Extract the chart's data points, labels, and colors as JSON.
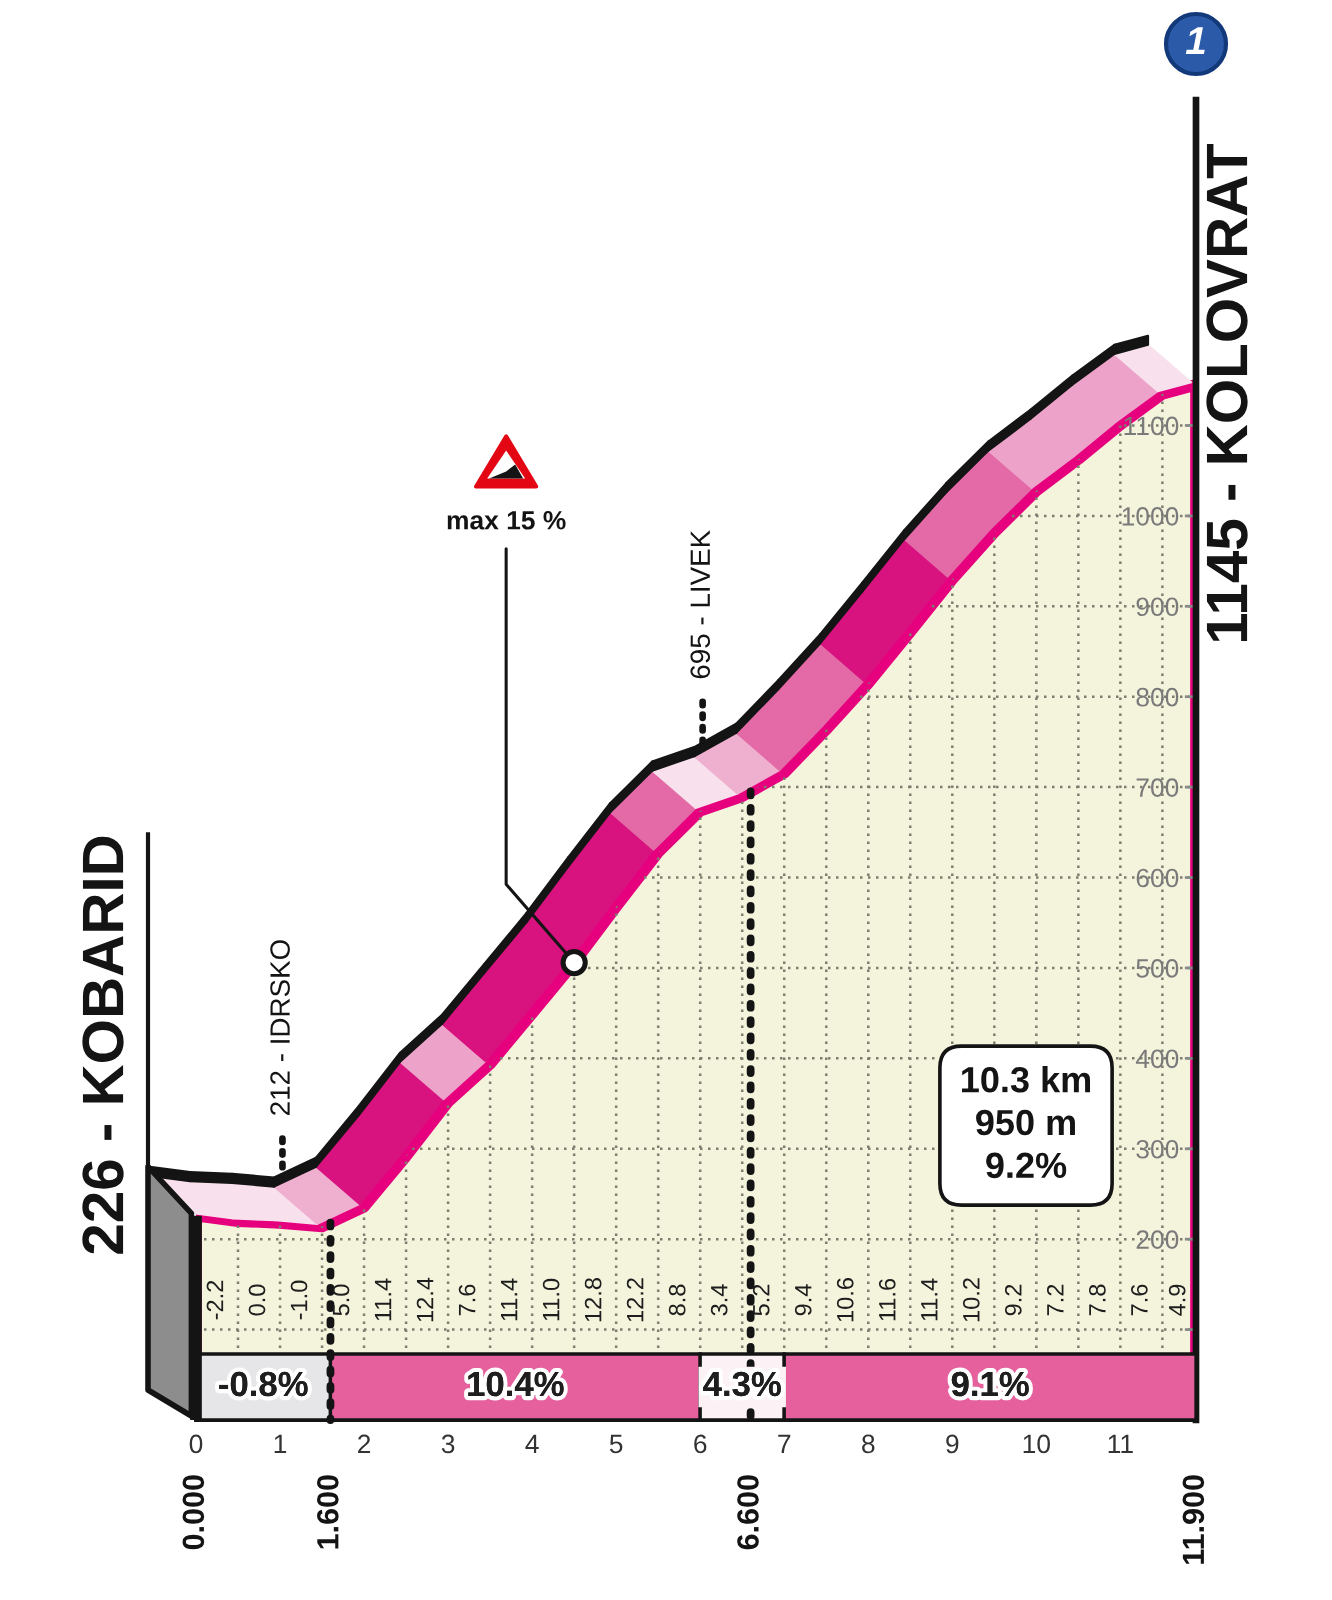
{
  "chart_data": {
    "type": "area",
    "x": [
      0,
      0.5,
      1,
      1.5,
      2,
      2.5,
      3,
      3.5,
      4,
      4.5,
      5,
      5.5,
      6,
      6.5,
      7,
      7.5,
      8,
      8.5,
      9,
      9.5,
      10,
      10.5,
      11,
      11.5,
      11.9
    ],
    "series": [
      {
        "color": "#f4f3dc",
        "values": [
          226,
          220,
          218,
          214,
          236,
          292,
          352,
          394,
          450,
          506,
          568,
          628,
          674,
          690,
          716,
          764,
          815,
          872,
          930,
          982,
          1028,
          1063,
          1101,
          1135,
          1145
        ]
      }
    ],
    "xlim": [
      0,
      11.9
    ],
    "xticks": [
      0,
      {
        "value": 0.5,
        "label": null
      },
      1,
      {
        "value": 1.5,
        "label": null
      },
      2,
      {
        "value": 2.5,
        "label": null
      },
      3,
      {
        "value": 3.5,
        "label": null
      },
      4,
      {
        "value": 4.5,
        "label": null
      },
      5,
      {
        "value": 5.5,
        "label": null
      },
      6,
      {
        "value": 6.5,
        "label": null
      },
      7,
      {
        "value": 7.5,
        "label": null
      },
      8,
      {
        "value": 8.5,
        "label": null
      },
      9,
      {
        "value": 9.5,
        "label": null
      },
      10,
      {
        "value": 10.5,
        "label": null
      },
      11,
      {
        "value": 11.5,
        "label": null
      }
    ],
    "ylim": [
      0,
      1460
    ],
    "yticks": [
      {
        "value": 100,
        "label": null
      },
      200,
      300,
      400,
      500,
      600,
      700,
      800,
      900,
      1000,
      1100
    ],
    "grid": true,
    "ref_lines": [
      {
        "axis": "x",
        "value": 0,
        "label": "0.000",
        "color": "#141414",
        "line_style": "solid"
      },
      {
        "axis": "x",
        "value": 1.6,
        "label": "1.600",
        "color": "#141414",
        "line_style": "dotted"
      },
      {
        "axis": "x",
        "value": 6.6,
        "label": "6.600",
        "color": "#141414",
        "line_style": "dotted"
      }
    ],
    "bands": [
      {
        "axis": "x",
        "from": 0,
        "to": 1.6,
        "label": "-0.8%",
        "color": "#e6e6e8"
      },
      {
        "axis": "x",
        "from": 1.6,
        "to": 6,
        "label": "10.4%",
        "color": "#e5609d"
      },
      {
        "axis": "x",
        "from": 6,
        "to": 7,
        "label": "4.3%",
        "color": "#fcf2f6"
      },
      {
        "axis": "x",
        "from": 7,
        "to": 11.9,
        "label": "9.1%",
        "color": "#e5609d"
      }
    ],
    "annotations": [
      {
        "text": "226 - KOBARID",
        "x": 0,
        "y": 226
      },
      {
        "text": "1145 - KOLOVRAT",
        "x": 11.9,
        "y": 1145
      },
      {
        "text": "212 - IDRSKO",
        "x": 1.6,
        "y": 212
      },
      {
        "text": "695 - LIVEK",
        "x": 6.6,
        "y": 695
      },
      {
        "text": "max 15 %",
        "x": 4.5,
        "y": 506
      },
      "10.3 km\n950 m\n9.2%",
      "1",
      "11.900",
      "-2.2",
      "0.0",
      "-1.0",
      "5.0",
      "11.4",
      "12.4",
      "7.6",
      "11.4",
      "11.0",
      "12.8",
      "12.2",
      "8.8",
      "3.4",
      "5.2",
      "9.4",
      "10.6",
      "11.6",
      "11.4",
      "10.2",
      "9.2",
      "7.2",
      "7.8",
      "7.6",
      "4.9"
    ]
  }
}
